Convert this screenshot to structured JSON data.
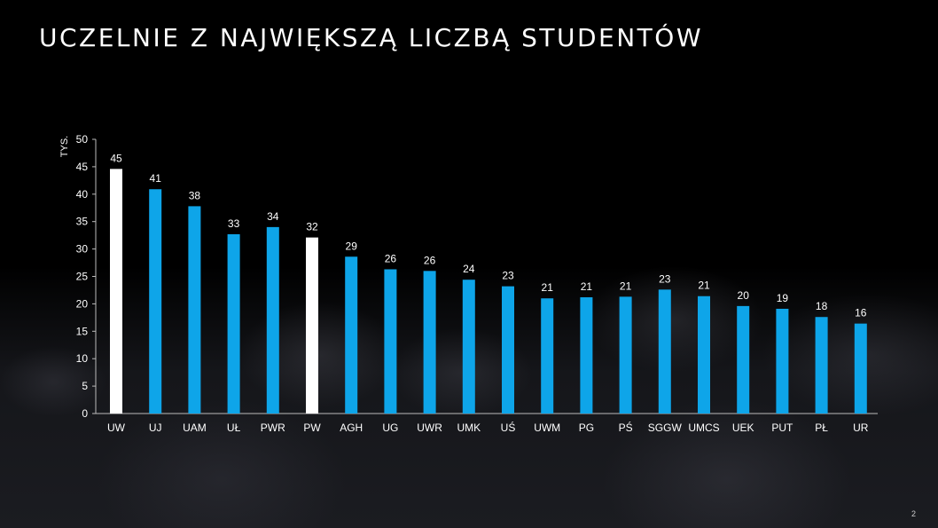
{
  "slide": {
    "title": "UCZELNIE Z NAJWIĘKSZĄ LICZBĄ STUDENTÓW",
    "page_number": "2"
  },
  "chart_data": {
    "type": "bar",
    "ylabel": "TYS.",
    "ylim": [
      0,
      50
    ],
    "yticks": [
      0,
      5,
      10,
      15,
      20,
      25,
      30,
      35,
      40,
      45,
      50
    ],
    "categories": [
      "UW",
      "UJ",
      "UAM",
      "UŁ",
      "PWR",
      "PW",
      "AGH",
      "UG",
      "UWR",
      "UMK",
      "UŚ",
      "UWM",
      "PG",
      "PŚ",
      "SGGW",
      "UMCS",
      "UEK",
      "PUT",
      "PŁ",
      "UR"
    ],
    "values": [
      45,
      41,
      38,
      33,
      34,
      32,
      29,
      26,
      26,
      24,
      23,
      21,
      21,
      21,
      23,
      21,
      20,
      19,
      18,
      16
    ],
    "value_labels": [
      "45",
      "41",
      "38",
      "33",
      "34",
      "32",
      "29",
      "26",
      "26",
      "24",
      "23",
      "21",
      "21",
      "21",
      "23",
      "21",
      "20",
      "19",
      "18",
      "16"
    ],
    "bar_values": [
      44.6,
      40.9,
      37.8,
      32.7,
      34.0,
      32.1,
      28.6,
      26.3,
      26.0,
      24.4,
      23.2,
      21.0,
      21.2,
      21.3,
      22.6,
      21.4,
      19.6,
      19.1,
      17.6,
      16.4
    ],
    "highlighted": [
      "UW",
      "PW"
    ],
    "colors": {
      "bar": "#0ea5e9",
      "highlight": "#ffffff",
      "axis": "#bbbbbb",
      "text": "#ffffff"
    },
    "grid": false,
    "legend": "none"
  }
}
